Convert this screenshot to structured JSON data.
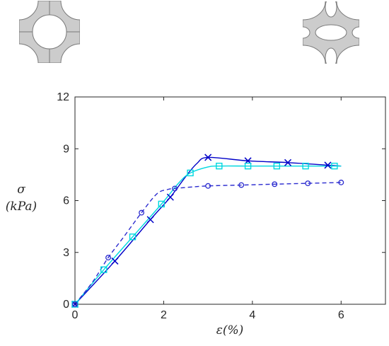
{
  "chart_data": {
    "type": "line",
    "xlabel": "ε(%)",
    "ylabel_symbol": "σ",
    "ylabel_unit": "(kPa)",
    "xlim": [
      0,
      7
    ],
    "ylim": [
      0,
      12
    ],
    "xticks": [
      0,
      2,
      4,
      6
    ],
    "yticks": [
      0,
      3,
      6,
      9,
      12
    ],
    "grid": false,
    "series": [
      {
        "color": "#0000c8",
        "line_style": "solid",
        "marker": "x",
        "marker_points": [
          [
            0,
            0
          ],
          [
            0.9,
            2.5
          ],
          [
            1.7,
            4.9
          ],
          [
            2.15,
            6.2
          ],
          [
            3.0,
            8.5
          ],
          [
            3.9,
            8.3
          ],
          [
            4.8,
            8.2
          ],
          [
            5.7,
            8.05
          ]
        ],
        "curve_points": [
          [
            0,
            0
          ],
          [
            0.9,
            2.5
          ],
          [
            1.7,
            4.9
          ],
          [
            2.15,
            6.2
          ],
          [
            2.5,
            7.4
          ],
          [
            2.75,
            8.15
          ],
          [
            3.0,
            8.5
          ],
          [
            3.9,
            8.3
          ],
          [
            4.8,
            8.2
          ],
          [
            5.7,
            8.05
          ],
          [
            6.0,
            8.0
          ]
        ]
      },
      {
        "color": "#00d8e0",
        "line_style": "solid",
        "marker": "square",
        "marker_points": [
          [
            0,
            0
          ],
          [
            0.65,
            2.0
          ],
          [
            1.3,
            3.9
          ],
          [
            1.95,
            5.8
          ],
          [
            2.6,
            7.6
          ],
          [
            3.25,
            8.0
          ],
          [
            3.9,
            8.0
          ],
          [
            4.55,
            8.0
          ],
          [
            5.2,
            8.0
          ],
          [
            5.85,
            8.0
          ]
        ],
        "curve_points": [
          [
            0,
            0
          ],
          [
            0.65,
            2.0
          ],
          [
            1.3,
            3.9
          ],
          [
            1.95,
            5.8
          ],
          [
            2.35,
            7.05
          ],
          [
            2.6,
            7.6
          ],
          [
            3.0,
            7.95
          ],
          [
            3.25,
            8.0
          ],
          [
            3.9,
            8.0
          ],
          [
            4.55,
            8.0
          ],
          [
            5.2,
            8.0
          ],
          [
            5.85,
            8.0
          ],
          [
            6.0,
            8.0
          ]
        ]
      },
      {
        "color": "#2a2acf",
        "line_style": "dashed",
        "marker": "circle",
        "marker_points": [
          [
            0,
            0
          ],
          [
            0.75,
            2.7
          ],
          [
            1.5,
            5.3
          ],
          [
            2.25,
            6.7
          ],
          [
            3.0,
            6.85
          ],
          [
            3.75,
            6.9
          ],
          [
            4.5,
            6.95
          ],
          [
            5.25,
            7.0
          ],
          [
            6.0,
            7.05
          ]
        ],
        "curve_points": [
          [
            0,
            0
          ],
          [
            0.4,
            1.3
          ],
          [
            0.75,
            2.7
          ],
          [
            1.1,
            3.9
          ],
          [
            1.5,
            5.3
          ],
          [
            1.85,
            6.4
          ],
          [
            2.1,
            6.65
          ],
          [
            2.25,
            6.7
          ],
          [
            2.6,
            6.78
          ],
          [
            3.0,
            6.85
          ],
          [
            3.75,
            6.9
          ],
          [
            4.5,
            6.95
          ],
          [
            5.25,
            7.0
          ],
          [
            6.0,
            7.05
          ]
        ]
      }
    ]
  },
  "unit_cells": [
    {
      "type": "circular-holes",
      "fill": "#cccccc",
      "stroke": "#7a7a7a"
    },
    {
      "type": "elliptical-holes",
      "fill": "#cccccc",
      "stroke": "#7a7a7a"
    }
  ]
}
